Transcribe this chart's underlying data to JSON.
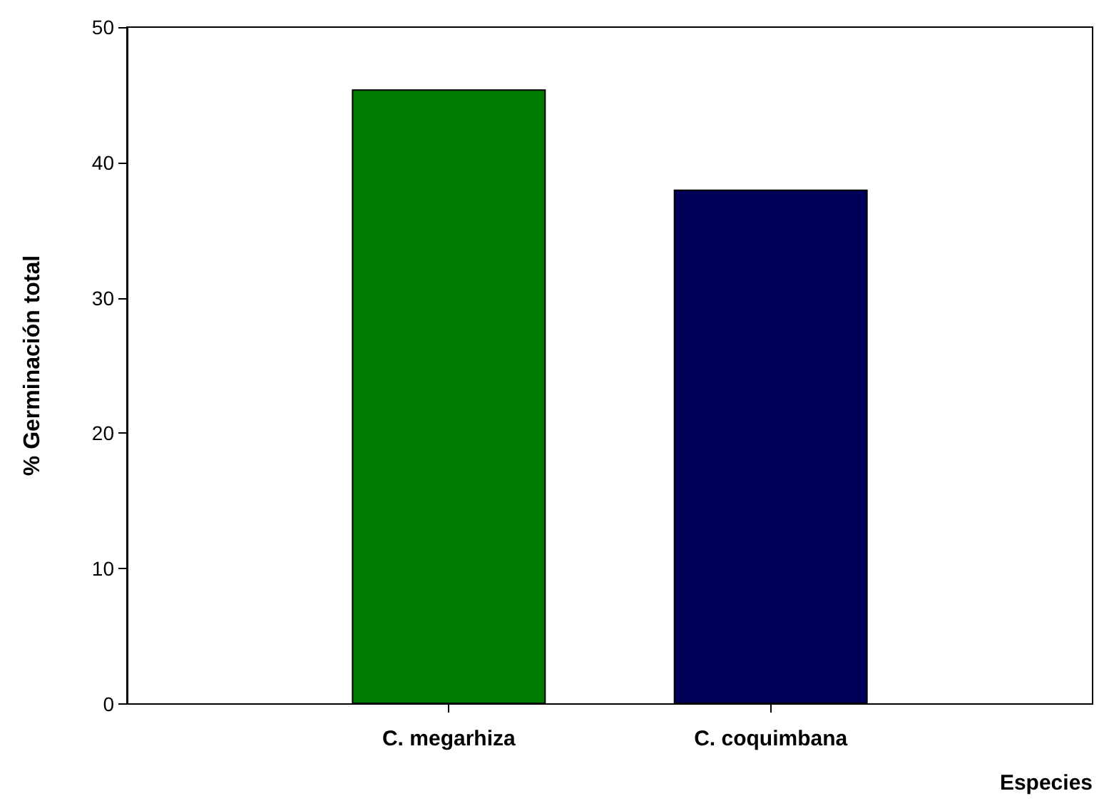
{
  "chart_data": {
    "type": "bar",
    "xlabel": "Especies",
    "ylabel": "% Germinación total",
    "categories": [
      "C. megarhiza",
      "C. coquimbana"
    ],
    "values": [
      45.4,
      38.0
    ],
    "colors": [
      "#007a00",
      "#000058"
    ],
    "ylim": [
      0,
      50
    ],
    "yticks": [
      0,
      10,
      20,
      30,
      40,
      50
    ],
    "grid": false
  }
}
